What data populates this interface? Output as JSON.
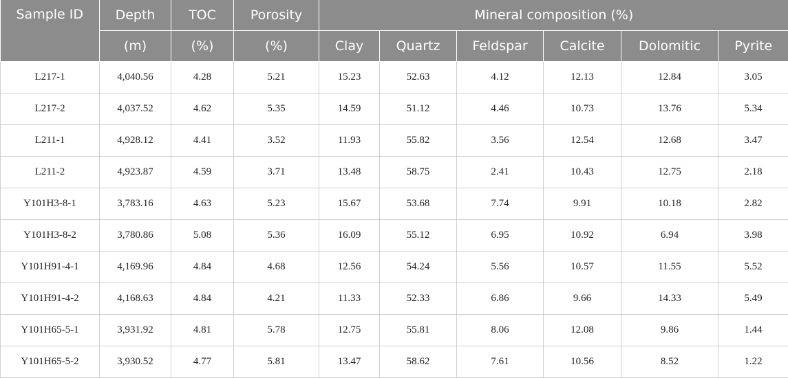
{
  "header": {
    "sample_id": "Sample ID",
    "depth": "Depth",
    "depth_unit": "(m)",
    "toc": "TOC",
    "toc_unit": "(%)",
    "porosity": "Porosity",
    "porosity_unit": "(%)",
    "mineral_group": "Mineral composition (%)",
    "minerals": [
      "Clay",
      "Quartz",
      "Feldspar",
      "Calcite",
      "Dolomitic",
      "Pyrite"
    ]
  },
  "rows": [
    [
      "L217-1",
      "4,040.56",
      "4.28",
      "5.21",
      "15.23",
      "52.63",
      "4.12",
      "12.13",
      "12.84",
      "3.05"
    ],
    [
      "L217-2",
      "4,037.52",
      "4.62",
      "5.35",
      "14.59",
      "51.12",
      "4.46",
      "10.73",
      "13.76",
      "5.34"
    ],
    [
      "L211-1",
      "4,928.12",
      "4.41",
      "3.52",
      "11.93",
      "55.82",
      "3.56",
      "12.54",
      "12.68",
      "3.47"
    ],
    [
      "L211-2",
      "4,923.87",
      "4.59",
      "3.71",
      "13.48",
      "58.75",
      "2.41",
      "10.43",
      "12.75",
      "2.18"
    ],
    [
      "Y101H3-8-1",
      "3,783.16",
      "4.63",
      "5.23",
      "15.67",
      "53.68",
      "7.74",
      "9.91",
      "10.18",
      "2.82"
    ],
    [
      "Y101H3-8-2",
      "3,780.86",
      "5.08",
      "5.36",
      "16.09",
      "55.12",
      "6.95",
      "10.92",
      "6.94",
      "3.98"
    ],
    [
      "Y101H91-4-1",
      "4,169.96",
      "4.84",
      "4.68",
      "12.56",
      "54.24",
      "5.56",
      "10.57",
      "11.55",
      "5.52"
    ],
    [
      "Y101H91-4-2",
      "4,168.63",
      "4.84",
      "4.21",
      "11.33",
      "52.33",
      "6.86",
      "9.66",
      "14.33",
      "5.49"
    ],
    [
      "Y101H65-5-1",
      "3,931.92",
      "4.81",
      "5.78",
      "12.75",
      "55.81",
      "8.06",
      "12.08",
      "9.86",
      "1.44"
    ],
    [
      "Y101H65-5-2",
      "3,930.52",
      "4.77",
      "5.81",
      "13.47",
      "58.62",
      "7.61",
      "10.56",
      "8.52",
      "1.22"
    ]
  ]
}
